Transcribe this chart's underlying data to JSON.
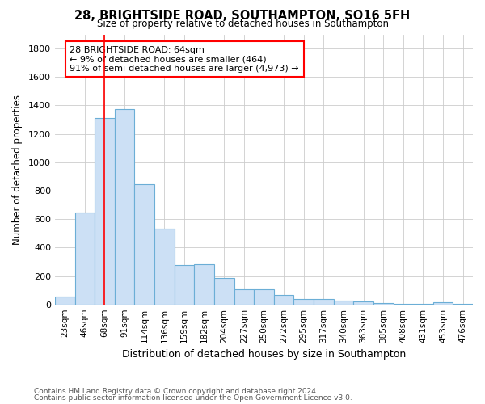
{
  "title1": "28, BRIGHTSIDE ROAD, SOUTHAMPTON, SO16 5FH",
  "title2": "Size of property relative to detached houses in Southampton",
  "xlabel": "Distribution of detached houses by size in Southampton",
  "ylabel": "Number of detached properties",
  "footer1": "Contains HM Land Registry data © Crown copyright and database right 2024.",
  "footer2": "Contains public sector information licensed under the Open Government Licence v3.0.",
  "categories": [
    "23sqm",
    "46sqm",
    "68sqm",
    "91sqm",
    "114sqm",
    "136sqm",
    "159sqm",
    "182sqm",
    "204sqm",
    "227sqm",
    "250sqm",
    "272sqm",
    "295sqm",
    "317sqm",
    "340sqm",
    "363sqm",
    "385sqm",
    "408sqm",
    "431sqm",
    "453sqm",
    "476sqm"
  ],
  "values": [
    55,
    645,
    1310,
    1375,
    848,
    530,
    275,
    280,
    185,
    105,
    105,
    68,
    38,
    38,
    25,
    20,
    12,
    5,
    3,
    15,
    5
  ],
  "bar_color": "#cce0f5",
  "bar_edge_color": "#6baed6",
  "grid_color": "#cccccc",
  "bg_color": "#ffffff",
  "vline_x": 2,
  "vline_color": "red",
  "annotation_text": "28 BRIGHTSIDE ROAD: 64sqm\n← 9% of detached houses are smaller (464)\n91% of semi-detached houses are larger (4,973) →",
  "annotation_box_color": "red",
  "ylim": [
    0,
    1900
  ],
  "yticks": [
    0,
    200,
    400,
    600,
    800,
    1000,
    1200,
    1400,
    1600,
    1800
  ]
}
